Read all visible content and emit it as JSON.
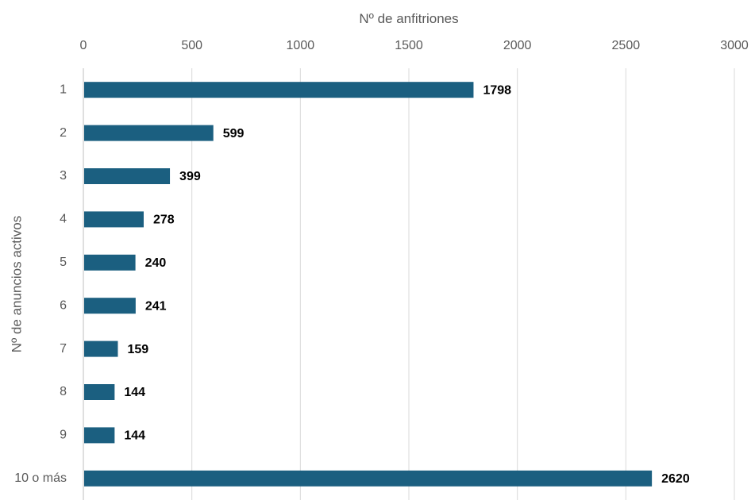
{
  "chart_data": {
    "type": "bar",
    "orientation": "horizontal",
    "categories": [
      "1",
      "2",
      "3",
      "4",
      "5",
      "6",
      "7",
      "8",
      "9",
      "10 o más"
    ],
    "values": [
      1798,
      599,
      399,
      278,
      240,
      241,
      159,
      144,
      144,
      2620
    ],
    "xlabel": "Nº de anfitriones",
    "ylabel": "Nº de anuncios activos",
    "xlim": [
      0,
      3000
    ],
    "x_ticks": [
      "0",
      "500",
      "1000",
      "1500",
      "2000",
      "2500",
      "3000"
    ],
    "x_axis_position": "top",
    "grid": true,
    "bar_color": "#1b5f80",
    "data_labels": true
  }
}
